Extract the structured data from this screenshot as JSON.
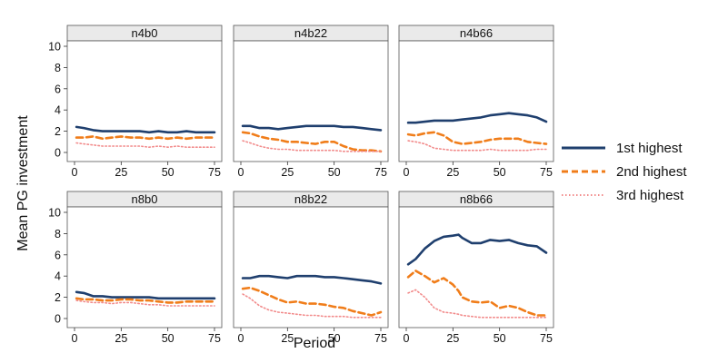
{
  "chart_data": {
    "type": "line",
    "ylabel": "Mean PG investment",
    "xlabel": "Period",
    "xlim": [
      0,
      75
    ],
    "ylim": [
      0,
      10
    ],
    "x_ticks": [
      0,
      25,
      50,
      75
    ],
    "y_ticks": [
      0,
      2,
      4,
      6,
      8,
      10
    ],
    "grid": false,
    "legend_position": "right",
    "series_styles": [
      {
        "name": "1st highest",
        "color": "#1f3f6e",
        "dash": "solid"
      },
      {
        "name": "2nd highest",
        "color": "#f07d1a",
        "dash": "dashed"
      },
      {
        "name": "3rd highest",
        "color": "#f28b8b",
        "dash": "dotted"
      }
    ],
    "panels": [
      {
        "title": "n4b0",
        "x": [
          1,
          5,
          10,
          15,
          20,
          25,
          30,
          35,
          40,
          45,
          50,
          55,
          60,
          65,
          70,
          75
        ],
        "series": [
          {
            "name": "1st highest",
            "values": [
              2.4,
              2.3,
              2.1,
              2.0,
              2.0,
              2.0,
              2.0,
              2.0,
              1.9,
              2.0,
              1.9,
              1.9,
              2.0,
              1.9,
              1.9,
              1.9
            ]
          },
          {
            "name": "2nd highest",
            "values": [
              1.4,
              1.4,
              1.5,
              1.3,
              1.4,
              1.5,
              1.4,
              1.4,
              1.3,
              1.4,
              1.3,
              1.4,
              1.3,
              1.4,
              1.4,
              1.4
            ]
          },
          {
            "name": "3rd highest",
            "values": [
              0.9,
              0.8,
              0.7,
              0.6,
              0.6,
              0.6,
              0.6,
              0.6,
              0.5,
              0.6,
              0.5,
              0.6,
              0.5,
              0.5,
              0.5,
              0.5
            ]
          }
        ]
      },
      {
        "title": "n4b22",
        "x": [
          1,
          5,
          10,
          15,
          20,
          25,
          30,
          35,
          40,
          45,
          50,
          55,
          60,
          65,
          70,
          75
        ],
        "series": [
          {
            "name": "1st highest",
            "values": [
              2.5,
              2.5,
              2.3,
              2.3,
              2.2,
              2.3,
              2.4,
              2.5,
              2.5,
              2.5,
              2.5,
              2.4,
              2.4,
              2.3,
              2.2,
              2.1
            ]
          },
          {
            "name": "2nd highest",
            "values": [
              1.9,
              1.8,
              1.5,
              1.3,
              1.2,
              1.0,
              1.0,
              0.9,
              0.8,
              1.0,
              1.0,
              0.6,
              0.3,
              0.2,
              0.2,
              0.1
            ]
          },
          {
            "name": "3rd highest",
            "values": [
              1.1,
              0.9,
              0.6,
              0.4,
              0.3,
              0.3,
              0.2,
              0.2,
              0.2,
              0.2,
              0.2,
              0.1,
              0.1,
              0.1,
              0.1,
              0.1
            ]
          }
        ]
      },
      {
        "title": "n4b66",
        "x": [
          1,
          5,
          10,
          15,
          20,
          25,
          30,
          35,
          40,
          45,
          50,
          55,
          60,
          65,
          70,
          75
        ],
        "series": [
          {
            "name": "1st highest",
            "values": [
              2.8,
              2.8,
              2.9,
              3.0,
              3.0,
              3.0,
              3.1,
              3.2,
              3.3,
              3.5,
              3.6,
              3.7,
              3.6,
              3.5,
              3.3,
              2.9
            ]
          },
          {
            "name": "2nd highest",
            "values": [
              1.7,
              1.6,
              1.8,
              1.9,
              1.6,
              1.0,
              0.8,
              0.9,
              1.0,
              1.2,
              1.3,
              1.3,
              1.3,
              1.0,
              0.9,
              0.8
            ]
          },
          {
            "name": "3rd highest",
            "values": [
              1.1,
              1.0,
              0.8,
              0.4,
              0.3,
              0.2,
              0.2,
              0.2,
              0.2,
              0.3,
              0.2,
              0.2,
              0.2,
              0.2,
              0.3,
              0.3
            ]
          }
        ]
      },
      {
        "title": "n8b0",
        "x": [
          1,
          5,
          10,
          15,
          20,
          25,
          30,
          35,
          40,
          45,
          50,
          55,
          60,
          65,
          70,
          75
        ],
        "series": [
          {
            "name": "1st highest",
            "values": [
              2.5,
              2.4,
              2.1,
              2.1,
              2.0,
              2.0,
              2.0,
              2.0,
              2.0,
              1.9,
              1.9,
              1.9,
              1.9,
              1.9,
              1.9,
              1.9
            ]
          },
          {
            "name": "2nd highest",
            "values": [
              1.9,
              1.8,
              1.8,
              1.7,
              1.7,
              1.8,
              1.8,
              1.7,
              1.7,
              1.6,
              1.5,
              1.5,
              1.6,
              1.6,
              1.6,
              1.6
            ]
          },
          {
            "name": "3rd highest",
            "values": [
              1.7,
              1.6,
              1.5,
              1.5,
              1.4,
              1.5,
              1.5,
              1.4,
              1.3,
              1.3,
              1.2,
              1.2,
              1.2,
              1.2,
              1.2,
              1.2
            ]
          }
        ]
      },
      {
        "title": "n8b22",
        "x": [
          1,
          5,
          10,
          15,
          20,
          25,
          30,
          35,
          40,
          45,
          50,
          55,
          60,
          65,
          70,
          75
        ],
        "series": [
          {
            "name": "1st highest",
            "values": [
              3.8,
              3.8,
              4.0,
              4.0,
              3.9,
              3.8,
              4.0,
              4.0,
              4.0,
              3.9,
              3.9,
              3.8,
              3.7,
              3.6,
              3.5,
              3.3
            ]
          },
          {
            "name": "2nd highest",
            "values": [
              2.8,
              2.9,
              2.6,
              2.2,
              1.8,
              1.5,
              1.6,
              1.4,
              1.4,
              1.3,
              1.1,
              1.0,
              0.7,
              0.5,
              0.3,
              0.6
            ]
          },
          {
            "name": "3rd highest",
            "values": [
              2.3,
              1.9,
              1.2,
              0.8,
              0.6,
              0.5,
              0.4,
              0.3,
              0.3,
              0.2,
              0.2,
              0.2,
              0.1,
              0.1,
              0.1,
              0.1
            ]
          }
        ]
      },
      {
        "title": "n8b66",
        "x": [
          1,
          5,
          10,
          15,
          20,
          25,
          28,
          30,
          35,
          40,
          45,
          50,
          55,
          60,
          65,
          70,
          75
        ],
        "series": [
          {
            "name": "1st highest",
            "values": [
              5.1,
              5.6,
              6.6,
              7.3,
              7.7,
              7.8,
              7.9,
              7.6,
              7.1,
              7.1,
              7.4,
              7.3,
              7.4,
              7.1,
              6.9,
              6.8,
              6.2
            ]
          },
          {
            "name": "2nd highest",
            "values": [
              3.9,
              4.5,
              4.0,
              3.4,
              3.8,
              3.2,
              2.6,
              2.0,
              1.6,
              1.5,
              1.6,
              1.0,
              1.2,
              1.0,
              0.6,
              0.3,
              0.3
            ]
          },
          {
            "name": "3rd highest",
            "values": [
              2.4,
              2.7,
              2.0,
              1.0,
              0.6,
              0.5,
              0.4,
              0.3,
              0.2,
              0.1,
              0.1,
              0.1,
              0.1,
              0.1,
              0.1,
              0.1,
              0.1
            ]
          }
        ]
      }
    ]
  }
}
